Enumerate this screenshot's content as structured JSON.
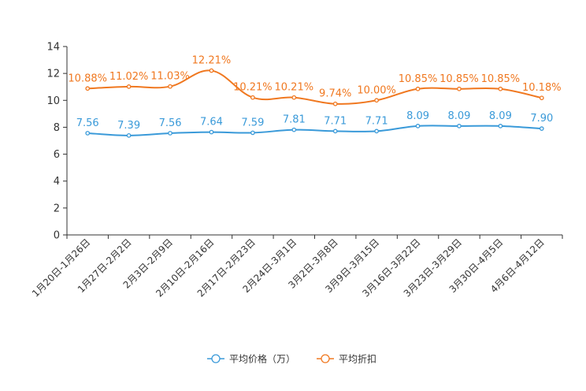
{
  "chart_data": {
    "type": "line",
    "title": "",
    "xlabel": "",
    "ylabel": "",
    "ylim": [
      0,
      14
    ],
    "yticks": [
      0,
      2,
      4,
      6,
      8,
      10,
      12,
      14
    ],
    "categories": [
      "1月20日-1月26日",
      "1月27日-2月2日",
      "2月3日-2月9日",
      "2月10日-2月16日",
      "2月17日-2月23日",
      "2月24日-3月1日",
      "3月2日-3月8日",
      "3月9日-3月15日",
      "3月16日-3月22日",
      "3月23日-3月29日",
      "3月30日-4月5日",
      "4月6日-4月12日"
    ],
    "series": [
      {
        "name": "平均价格（万）",
        "color": "#3a9ad9",
        "values": [
          7.56,
          7.39,
          7.56,
          7.64,
          7.59,
          7.81,
          7.71,
          7.71,
          8.09,
          8.09,
          8.09,
          7.9
        ],
        "labels": [
          "7.56",
          "7.39",
          "7.56",
          "7.64",
          "7.59",
          "7.81",
          "7.71",
          "7.71",
          "8.09",
          "8.09",
          "8.09",
          "7.90"
        ]
      },
      {
        "name": "平均折扣",
        "color": "#f07820",
        "values": [
          10.88,
          11.02,
          11.03,
          12.21,
          10.21,
          10.21,
          9.74,
          10.0,
          10.85,
          10.85,
          10.85,
          10.18
        ],
        "labels": [
          "10.88%",
          "11.02%",
          "11.03%",
          "12.21%",
          "10.21%",
          "10.21%",
          "9.74%",
          "10.00%",
          "10.85%",
          "10.85%",
          "10.85%",
          "10.18%"
        ]
      }
    ],
    "legend_position": "bottom-center",
    "grid": false
  }
}
